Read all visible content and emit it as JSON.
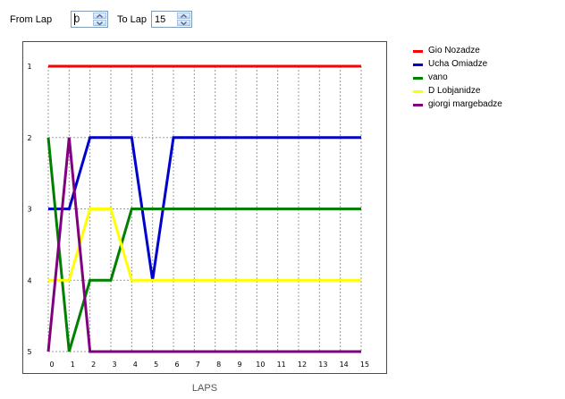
{
  "controls": {
    "from_label": "From Lap",
    "from_value": "0",
    "to_label": "To Lap",
    "to_value": "15"
  },
  "colors": {
    "frame": "#4d4d4d",
    "grid": "#9a9a9a"
  },
  "chart_data": {
    "type": "line",
    "xlabel": "LAPS",
    "ylabel": "",
    "x": [
      0,
      1,
      2,
      3,
      4,
      5,
      6,
      7,
      8,
      9,
      10,
      11,
      12,
      13,
      14,
      15
    ],
    "xlim": [
      0,
      15
    ],
    "ylim": [
      1,
      5
    ],
    "y_inverted": true,
    "yticks": [
      1,
      2,
      3,
      4,
      5
    ],
    "grid": true,
    "legend_position": "right",
    "series": [
      {
        "name": "Gio Nozadze",
        "color": "#ff0000",
        "values": [
          1,
          1,
          1,
          1,
          1,
          1,
          1,
          1,
          1,
          1,
          1,
          1,
          1,
          1,
          1,
          1
        ]
      },
      {
        "name": "Ucha Omiadze",
        "color": "#0000cc",
        "values": [
          3,
          3,
          2,
          2,
          2,
          4,
          2,
          2,
          2,
          2,
          2,
          2,
          2,
          2,
          2,
          2
        ]
      },
      {
        "name": "vano",
        "color": "#008000",
        "values": [
          2,
          5,
          4,
          4,
          3,
          3,
          3,
          3,
          3,
          3,
          3,
          3,
          3,
          3,
          3,
          3
        ]
      },
      {
        "name": "D Lobjanidze",
        "color": "#ffff00",
        "values": [
          4,
          4,
          3,
          3,
          4,
          4,
          4,
          4,
          4,
          4,
          4,
          4,
          4,
          4,
          4,
          4
        ]
      },
      {
        "name": "giorgi margebadze",
        "color": "#800080",
        "values": [
          5,
          2,
          5,
          5,
          5,
          5,
          5,
          5,
          5,
          5,
          5,
          5,
          5,
          5,
          5,
          5
        ]
      }
    ]
  }
}
